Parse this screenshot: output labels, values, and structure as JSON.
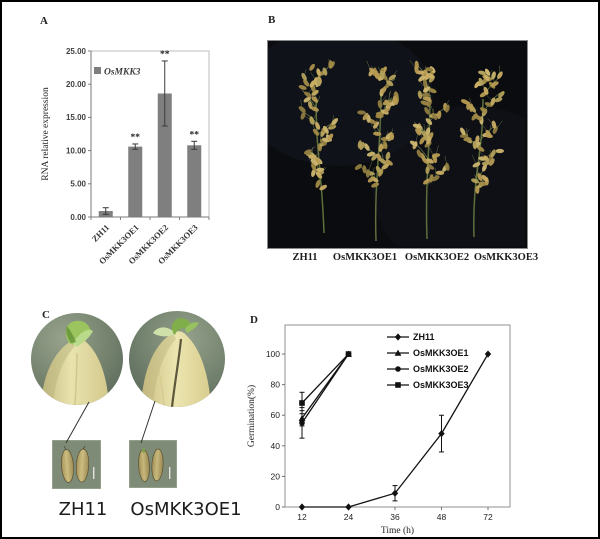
{
  "panels": {
    "a": {
      "label": "A"
    },
    "b": {
      "label": "B",
      "labels": [
        "ZH11",
        "OsMKK3OE1",
        "OsMKK3OE2",
        "OsMKK3OE3"
      ]
    },
    "c": {
      "label": "C",
      "labels": [
        "ZH11",
        "OsMKK3OE1"
      ]
    },
    "d": {
      "label": "D"
    }
  },
  "colors": {
    "bar_fill": "#7f7f7f",
    "axis_gray": "#8c8c8c",
    "photo_background": "#0b0c10",
    "grain_gold": "#b79b52",
    "stem_green": "#5e6f3c",
    "seed_pale_yellow": "#e2dca2",
    "leaf_green": "#8cbb53",
    "closeup_background": "#75836e"
  },
  "chart_data": [
    {
      "type": "bar",
      "panel": "A",
      "legend": [
        "OsMKK3"
      ],
      "categories": [
        "ZH11",
        "OsMKK3OE1",
        "OsMKK3OE2",
        "OsMKK3OE3"
      ],
      "values": [
        0.9,
        10.6,
        18.6,
        10.8
      ],
      "errors": [
        0.5,
        0.4,
        4.9,
        0.6
      ],
      "significance": [
        "",
        "**",
        "**",
        "**"
      ],
      "ylabel": "RNA relative expression",
      "ylim": [
        0,
        25
      ],
      "yticks": [
        0,
        5,
        10,
        15,
        20,
        25
      ],
      "ytick_labels": [
        "0.00",
        "5.00",
        "10.00",
        "15.00",
        "20.00",
        "25.00"
      ],
      "bar_color": "#7f7f7f"
    },
    {
      "type": "line",
      "panel": "D",
      "x": [
        12,
        24,
        36,
        48,
        72
      ],
      "xtick_labels": [
        "12",
        "24",
        "36",
        "48",
        "72"
      ],
      "xlabel": "Time (h)",
      "ylabel": "Germination(%)",
      "ylim": [
        0,
        119
      ],
      "yticks": [
        0,
        20,
        40,
        60,
        80,
        100
      ],
      "legend_position": "top-center-inside",
      "series": [
        {
          "name": "ZH11",
          "marker": "diamond",
          "values": [
            0,
            0,
            9,
            48,
            100
          ],
          "errors": [
            0,
            0,
            5,
            12,
            0
          ]
        },
        {
          "name": "OsMKK3OE1",
          "marker": "triangle",
          "values": [
            58,
            100,
            null,
            null,
            null
          ],
          "errors": [
            5,
            0,
            0,
            0,
            0
          ]
        },
        {
          "name": "OsMKK3OE2",
          "marker": "circle",
          "values": [
            55,
            100,
            null,
            null,
            null
          ],
          "errors": [
            10,
            0,
            0,
            0,
            0
          ]
        },
        {
          "name": "OsMKK3OE3",
          "marker": "square",
          "values": [
            68,
            100,
            null,
            null,
            null
          ],
          "errors": [
            7,
            0,
            0,
            0,
            0
          ]
        }
      ]
    }
  ]
}
